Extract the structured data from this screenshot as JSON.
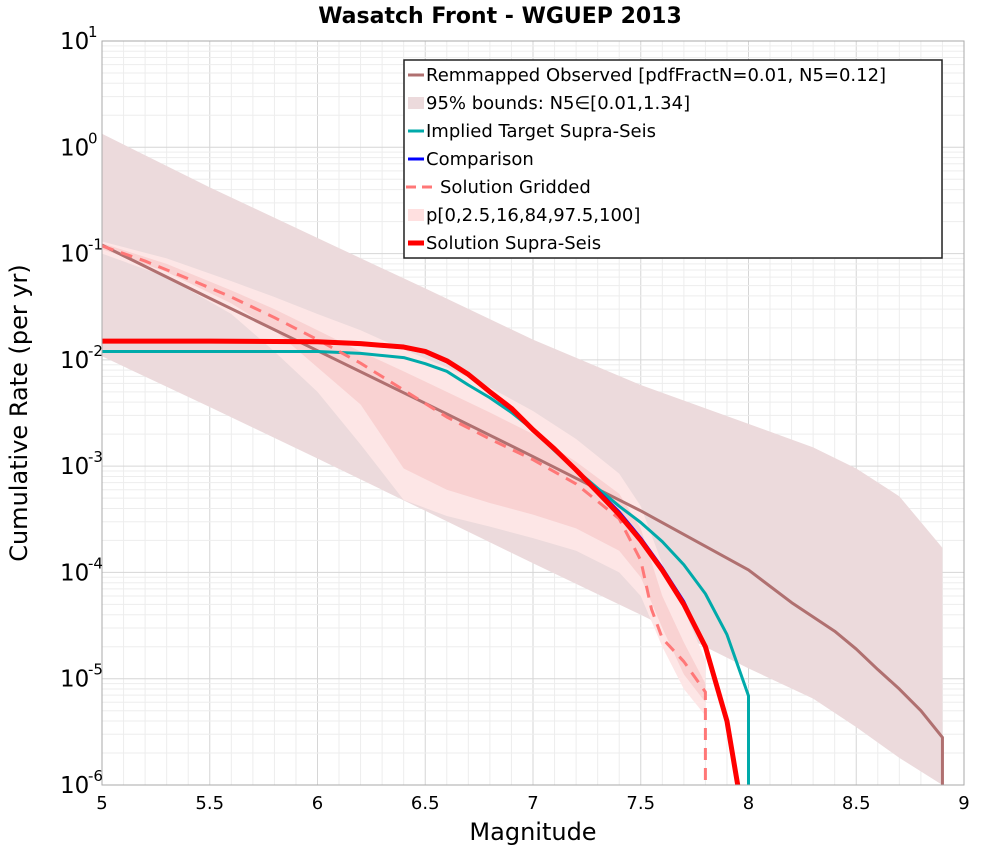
{
  "chart_data": {
    "type": "line",
    "title": "Wasatch Front - WGUEP 2013",
    "xlabel": "Magnitude",
    "ylabel": "Cumulative Rate (per yr)",
    "xlim": [
      5,
      9
    ],
    "ylim": [
      1e-06,
      10
    ],
    "yscale": "log",
    "grid": true,
    "legend_position": "top-right",
    "x_ticks": [
      "5",
      "5.5",
      "6",
      "6.5",
      "7",
      "7.5",
      "8",
      "8.5",
      "9"
    ],
    "y_ticks": [
      {
        "base": "10",
        "exp": "-6",
        "value": 1e-06
      },
      {
        "base": "10",
        "exp": "-5",
        "value": 1e-05
      },
      {
        "base": "10",
        "exp": "-4",
        "value": 0.0001
      },
      {
        "base": "10",
        "exp": "-3",
        "value": 0.001
      },
      {
        "base": "10",
        "exp": "-2",
        "value": 0.01
      },
      {
        "base": "10",
        "exp": "-1",
        "value": 0.1
      },
      {
        "base": "10",
        "exp": "0",
        "value": 1
      },
      {
        "base": "10",
        "exp": "1",
        "value": 10
      }
    ],
    "legend": [
      {
        "label": "Remmapped Observed [pdfFractN=0.01, N5=0.12]",
        "color": "#b07070",
        "style": "line"
      },
      {
        "label": "95% bounds: N5∈[0.01,1.34]",
        "color": "#ecdadc",
        "style": "patch"
      },
      {
        "label": "Implied Target Supra-Seis",
        "color": "#00aaaa",
        "style": "line"
      },
      {
        "label": "Comparison",
        "color": "#0000ff",
        "style": "line"
      },
      {
        "label": "Solution Gridded",
        "color": "#ff7777",
        "style": "dashed"
      },
      {
        "label": "p[0,2.5,16,84,97.5,100]",
        "color": "#ffe0e0",
        "style": "patch"
      },
      {
        "label": "Solution Supra-Seis",
        "color": "#ff0000",
        "style": "thick-line"
      }
    ],
    "bands": [
      {
        "name": "95% bounds: N5∈[0.01,1.34]",
        "color": "#ecdadc",
        "x": [
          5.0,
          5.5,
          6.0,
          6.5,
          7.0,
          7.5,
          8.0,
          8.3,
          8.5,
          8.7,
          8.9
        ],
        "upper": [
          1.34,
          0.42,
          0.14,
          0.047,
          0.0155,
          0.0058,
          0.0025,
          0.0015,
          0.00095,
          0.00052,
          0.00017
        ],
        "lower": [
          0.0108,
          0.0036,
          0.00118,
          0.00038,
          0.000122,
          4e-05,
          1.25e-05,
          6.5e-06,
          3.5e-06,
          1.8e-06,
          1e-06
        ]
      },
      {
        "name": "p[0,2.5,16,84,97.5,100] (outer)",
        "color": "#fde6e6",
        "x": [
          5.0,
          5.3,
          5.6,
          5.8,
          6.0,
          6.2,
          6.4,
          6.6,
          6.8,
          7.0,
          7.2,
          7.4,
          7.5,
          7.6,
          7.7,
          7.8
        ],
        "upper": [
          0.13,
          0.09,
          0.055,
          0.039,
          0.027,
          0.019,
          0.0125,
          0.0085,
          0.0055,
          0.0033,
          0.0018,
          0.00085,
          0.00042,
          0.00012,
          4.5e-05,
          1.5e-05
        ],
        "lower": [
          0.1,
          0.06,
          0.027,
          0.012,
          0.005,
          0.0016,
          0.00048,
          0.00034,
          0.00027,
          0.00021,
          0.00016,
          0.0001,
          6e-05,
          2e-05,
          8e-06,
          4.5e-06
        ]
      },
      {
        "name": "p[0,2.5,16,84,97.5,100] (inner)",
        "color": "#f9d2d2",
        "x": [
          5.0,
          5.3,
          5.6,
          5.8,
          6.0,
          6.2,
          6.4,
          6.6,
          6.8,
          7.0,
          7.2,
          7.4,
          7.5,
          7.6,
          7.7,
          7.8
        ],
        "upper": [
          0.125,
          0.08,
          0.045,
          0.03,
          0.019,
          0.012,
          0.0078,
          0.005,
          0.0032,
          0.002,
          0.0011,
          0.00055,
          0.00026,
          6e-05,
          2.2e-05,
          9e-06
        ],
        "lower": [
          0.11,
          0.067,
          0.034,
          0.019,
          0.0085,
          0.0038,
          0.00095,
          0.0006,
          0.00045,
          0.00035,
          0.00026,
          0.00016,
          9e-05,
          3e-05,
          1.1e-05,
          6e-06
        ]
      }
    ],
    "series": [
      {
        "name": "Remmapped Observed [pdfFractN=0.01, N5=0.12]",
        "color": "#b07070",
        "dash": "",
        "width": 3,
        "x": [
          5.0,
          5.5,
          6.0,
          6.5,
          7.0,
          7.5,
          8.0,
          8.2,
          8.4,
          8.5,
          8.6,
          8.7,
          8.8,
          8.9,
          8.9
        ],
        "y": [
          0.12,
          0.038,
          0.0122,
          0.0039,
          0.00123,
          0.00038,
          0.0001055,
          5.2e-05,
          2.8e-05,
          1.9e-05,
          1.22e-05,
          8e-06,
          5e-06,
          2.8e-06,
          1e-06
        ]
      },
      {
        "name": "Implied Target Supra-Seis",
        "color": "#00aaaa",
        "dash": "",
        "width": 3,
        "x": [
          5.0,
          5.5,
          6.0,
          6.2,
          6.4,
          6.5,
          6.6,
          6.7,
          6.8,
          6.9,
          7.0,
          7.1,
          7.2,
          7.3,
          7.4,
          7.5,
          7.6,
          7.7,
          7.8,
          7.9,
          8.0,
          8.0
        ],
        "y": [
          0.012,
          0.012,
          0.012,
          0.0115,
          0.0105,
          0.0092,
          0.0078,
          0.0058,
          0.0044,
          0.0032,
          0.0022,
          0.0014,
          0.00092,
          0.00062,
          0.00042,
          0.000295,
          0.000195,
          0.000118,
          6.3e-05,
          2.6e-05,
          6.9e-06,
          1e-06
        ]
      },
      {
        "name": "Comparison",
        "color": "#0000ff",
        "dash": "",
        "width": 3,
        "x": [
          5.0,
          5.5,
          6.0,
          6.2,
          6.4,
          6.5,
          6.6,
          6.7,
          6.8,
          6.9,
          7.0,
          7.1,
          7.2,
          7.3,
          7.4,
          7.5,
          7.6,
          7.7,
          7.8,
          7.9,
          7.95
        ],
        "y": [
          0.0148,
          0.0148,
          0.0146,
          0.014,
          0.013,
          0.0118,
          0.0096,
          0.0072,
          0.0049,
          0.0034,
          0.0022,
          0.00145,
          0.00093,
          0.00059,
          0.00037,
          0.00021,
          0.00011,
          5.3e-05,
          2e-05,
          4e-06,
          1e-06
        ]
      },
      {
        "name": "Solution Gridded",
        "color": "#ff7777",
        "dash": "12,8",
        "width": 3,
        "x": [
          5.0,
          5.2,
          5.4,
          5.6,
          5.8,
          6.0,
          6.2,
          6.4,
          6.6,
          6.8,
          7.0,
          7.2,
          7.4,
          7.5,
          7.55,
          7.6,
          7.7,
          7.8,
          7.8
        ],
        "y": [
          0.118,
          0.085,
          0.058,
          0.039,
          0.025,
          0.0155,
          0.0093,
          0.0052,
          0.0029,
          0.0018,
          0.00115,
          0.00068,
          0.00032,
          0.00013,
          4.5e-05,
          2.4e-05,
          1.45e-05,
          7.5e-06,
          1e-06
        ]
      },
      {
        "name": "Solution Supra-Seis",
        "color": "#ff0000",
        "dash": "",
        "width": 5,
        "x": [
          5.0,
          5.5,
          6.0,
          6.2,
          6.4,
          6.5,
          6.6,
          6.7,
          6.8,
          6.9,
          7.0,
          7.1,
          7.2,
          7.3,
          7.4,
          7.5,
          7.6,
          7.7,
          7.8,
          7.9,
          7.95
        ],
        "y": [
          0.015,
          0.015,
          0.0148,
          0.0142,
          0.0132,
          0.012,
          0.0098,
          0.0073,
          0.005,
          0.0035,
          0.0022,
          0.00145,
          0.00092,
          0.00057,
          0.00035,
          0.0002,
          0.000105,
          5e-05,
          2e-05,
          4e-06,
          1e-06
        ]
      }
    ]
  }
}
